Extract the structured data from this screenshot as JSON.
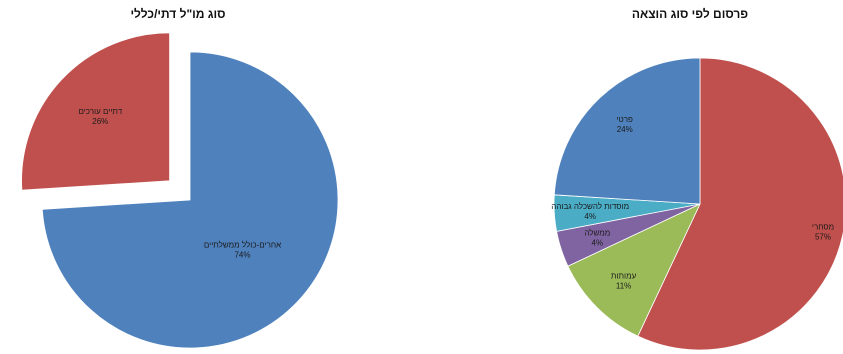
{
  "chart_data": [
    {
      "type": "pie",
      "title": "סוג מו\"ל דתי/כללי",
      "slices": [
        {
          "label": "אחרים-כולל ממשלתיים",
          "value": 74,
          "percent_label": "74%",
          "color": "#4f81bd",
          "exploded": false
        },
        {
          "label": "דתיים עורכים",
          "value": 26,
          "percent_label": "26%",
          "color": "#c0504d",
          "exploded": true
        }
      ]
    },
    {
      "type": "pie",
      "title": "פרסום לפי סוג הוצאה",
      "slices": [
        {
          "label": "מסחרי",
          "value": 57,
          "percent_label": "57%",
          "color": "#c0504d"
        },
        {
          "label": "עמותות",
          "value": 11,
          "percent_label": "11%",
          "color": "#9bbb59"
        },
        {
          "label": "ממשלה",
          "value": 4,
          "percent_label": "4%",
          "color": "#8064a2"
        },
        {
          "label": "מוסדות להשכלה גבוהה",
          "value": 4,
          "percent_label": "4%",
          "color": "#4bacc6"
        },
        {
          "label": "פרטי",
          "value": 24,
          "percent_label": "24%",
          "color": "#4f81bd"
        }
      ]
    }
  ]
}
